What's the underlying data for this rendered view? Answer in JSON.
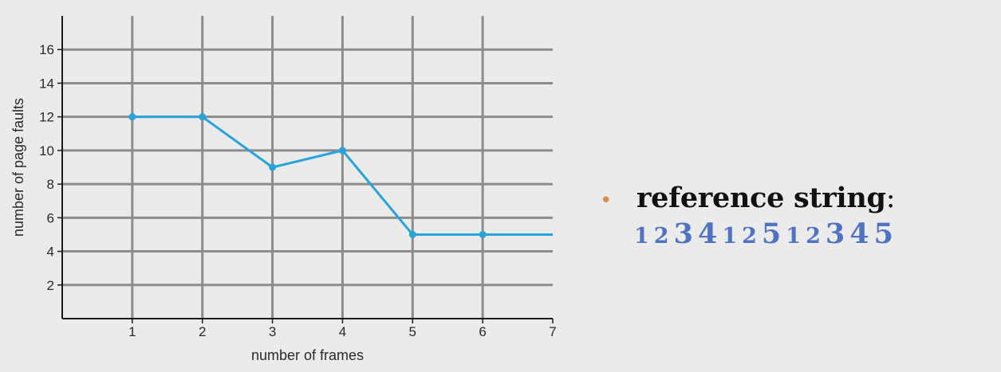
{
  "chart_data": {
    "type": "line",
    "xlabel": "number of frames",
    "ylabel": "number of page faults",
    "xlim": [
      0,
      7
    ],
    "ylim": [
      0,
      18
    ],
    "x_ticks": [
      1,
      2,
      3,
      4,
      5,
      6,
      7
    ],
    "y_ticks": [
      2,
      4,
      6,
      8,
      10,
      12,
      14,
      16
    ],
    "grid": true,
    "series": [
      {
        "x": [
          1,
          2,
          3,
          4,
          5,
          6,
          7
        ],
        "y": [
          12,
          12,
          9,
          10,
          5,
          5,
          5
        ],
        "markers": [
          true,
          true,
          true,
          true,
          true,
          true,
          false
        ]
      }
    ],
    "colors": {
      "line": "#29a3dc",
      "grid": "#8c8c8c",
      "axis": "#1a1a1a"
    }
  },
  "reference": {
    "bullet": "•",
    "label": "reference string",
    "colon": ":",
    "sequence": [
      "1",
      "2",
      "3",
      "4",
      "1",
      "2",
      "5",
      "1",
      "2",
      "3",
      "4",
      "5"
    ],
    "sizes": [
      "small",
      "small",
      "big",
      "big",
      "small",
      "small",
      "big",
      "small",
      "small",
      "big",
      "big",
      "big"
    ]
  }
}
